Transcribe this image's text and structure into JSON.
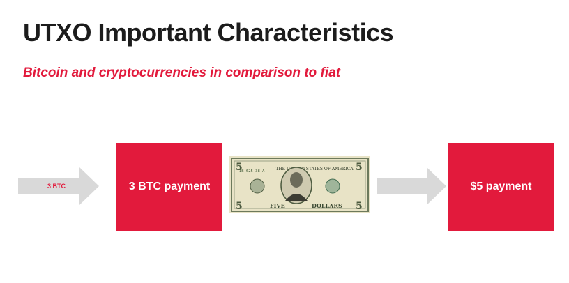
{
  "slide": {
    "title": "UTXO Important Characteristics",
    "subtitle": "Bitcoin and cryptocurrencies in comparison to fiat"
  },
  "flow": {
    "input_label": "3 BTC",
    "left_box_label": "3 BTC payment",
    "right_box_label": "$5 payment"
  },
  "bill": {
    "denomination": "5",
    "header": "THE UNITED STATES OF AMERICA",
    "denomination_word": "FIVE",
    "currency_word": "DOLLARS",
    "serial": "IB 625 38 A"
  },
  "colors": {
    "accent": "#e21a3c",
    "arrow": "#d9d9d9",
    "title": "#1c1c1c"
  }
}
